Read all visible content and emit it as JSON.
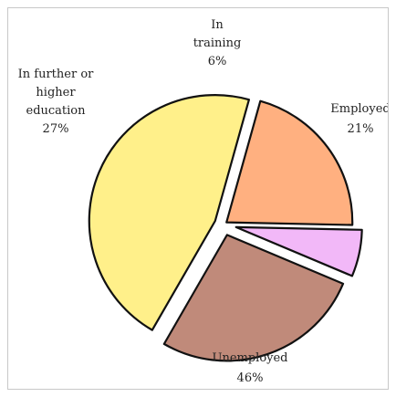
{
  "chart_data": {
    "type": "pie",
    "title": "",
    "slices": [
      {
        "name": "Employed",
        "value": 21,
        "label_lines": [
          "Employed",
          "21%"
        ],
        "color": "#ffb080",
        "exploded": false
      },
      {
        "name": "Unemployed",
        "value": 46,
        "label_lines": [
          "Unemployed",
          "46%"
        ],
        "color": "#fff08a",
        "exploded": true
      },
      {
        "name": "In further or higher education",
        "value": 27,
        "label_lines": [
          "In further or",
          "higher",
          "education",
          "27%"
        ],
        "color": "#c08a7a",
        "exploded": true
      },
      {
        "name": "In training",
        "value": 6,
        "label_lines": [
          "In",
          "training",
          "6%"
        ],
        "color": "#f2b8f8",
        "exploded": true
      }
    ]
  }
}
